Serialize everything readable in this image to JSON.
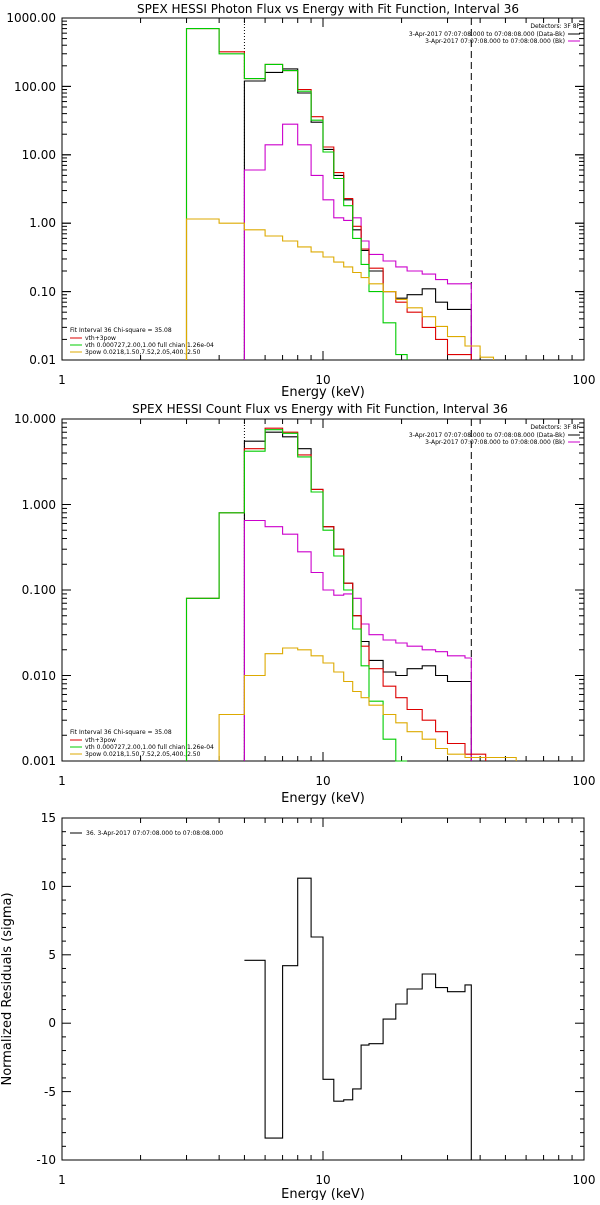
{
  "chart_data": [
    {
      "type": "line",
      "title": "SPEX HESSI Photon Flux vs Energy with Fit Function, Interval 36",
      "xlabel": "Energy (keV)",
      "ylabel": "",
      "xscale": "log",
      "yscale": "log",
      "xlim": [
        1,
        100
      ],
      "ylim": [
        0.01,
        1000
      ],
      "x_ticks": [
        "1",
        "10",
        "100"
      ],
      "y_ticks": [
        "0.01",
        "0.10",
        "1.00",
        "10.00",
        "100.00",
        "1000.00"
      ],
      "detectors_label": "Detectors: 3F 8F",
      "legend_top": [
        {
          "text": "3-Apr-2017 07:07:08.000 to 07:08:08.000 (Data-Bk)",
          "color": "#000000"
        },
        {
          "text": "3-Apr-2017 07:07:08.000 to 07:08:08.000 (Bk)",
          "color": "#cc00cc"
        }
      ],
      "fit_info": "Fit Interval 36   Chi-square = 35.08",
      "legend_bottom": [
        {
          "text": "vth+3pow",
          "color": "#dd0000"
        },
        {
          "text": "vth 0.000727,2.00,1.00   full chian 1.26e-04",
          "color": "#00cc00"
        },
        {
          "text": "3pow 0.0218,1.50,7.52,2.05,400.,2.50",
          "color": "#ddaa00"
        }
      ],
      "edges": [
        3,
        4,
        5,
        6,
        7,
        8,
        9,
        10,
        11,
        12,
        13,
        14,
        15,
        17,
        19,
        21,
        24,
        27,
        30,
        35,
        40,
        45
      ],
      "vlines": [
        {
          "x": 5,
          "style": "dotted"
        },
        {
          "x": 37,
          "style": "dashed"
        }
      ],
      "series": [
        {
          "name": "Data-Bk",
          "color": "#000000",
          "start": 5,
          "end": 37,
          "steps": [
            [
              5,
              120
            ],
            [
              6,
              160
            ],
            [
              7,
              180
            ],
            [
              8,
              80
            ],
            [
              9,
              30
            ],
            [
              10,
              12
            ],
            [
              11,
              5
            ],
            [
              12,
              2.2
            ],
            [
              13,
              0.8
            ],
            [
              14,
              0.4
            ],
            [
              15,
              0.2
            ],
            [
              17,
              0.1
            ],
            [
              19,
              0.08
            ],
            [
              21,
              0.09
            ],
            [
              24,
              0.11
            ],
            [
              27,
              0.07
            ],
            [
              30,
              0.055
            ],
            [
              35,
              0.055
            ]
          ]
        },
        {
          "name": "Bk",
          "color": "#cc00cc",
          "start": 5,
          "end": 37,
          "steps": [
            [
              5,
              6
            ],
            [
              6,
              14
            ],
            [
              7,
              28
            ],
            [
              8,
              14
            ],
            [
              9,
              5
            ],
            [
              10,
              2.2
            ],
            [
              11,
              1.2
            ],
            [
              12,
              1.1
            ],
            [
              13,
              1.2
            ],
            [
              14,
              0.55
            ],
            [
              15,
              0.35
            ],
            [
              17,
              0.28
            ],
            [
              19,
              0.23
            ],
            [
              21,
              0.2
            ],
            [
              24,
              0.18
            ],
            [
              27,
              0.15
            ],
            [
              30,
              0.13
            ],
            [
              35,
              0.13
            ]
          ]
        },
        {
          "name": "vth+3pow",
          "color": "#dd0000",
          "start": 3,
          "end": 37,
          "steps": [
            [
              3,
              700
            ],
            [
              4,
              320
            ],
            [
              5,
              130
            ],
            [
              6,
              210
            ],
            [
              7,
              170
            ],
            [
              8,
              90
            ],
            [
              9,
              36
            ],
            [
              10,
              13
            ],
            [
              11,
              5.5
            ],
            [
              12,
              2.3
            ],
            [
              13,
              0.9
            ],
            [
              14,
              0.42
            ],
            [
              15,
              0.22
            ],
            [
              17,
              0.1
            ],
            [
              19,
              0.07
            ],
            [
              21,
              0.05
            ],
            [
              24,
              0.03
            ],
            [
              27,
              0.02
            ],
            [
              30,
              0.012
            ],
            [
              35,
              0.012
            ]
          ]
        },
        {
          "name": "vth",
          "color": "#00cc00",
          "start": 3,
          "end": 21,
          "steps": [
            [
              3,
              700
            ],
            [
              4,
              300
            ],
            [
              5,
              130
            ],
            [
              6,
              210
            ],
            [
              7,
              170
            ],
            [
              8,
              85
            ],
            [
              9,
              32
            ],
            [
              10,
              11
            ],
            [
              11,
              4.5
            ],
            [
              12,
              1.8
            ],
            [
              13,
              0.6
            ],
            [
              14,
              0.25
            ],
            [
              15,
              0.1
            ],
            [
              17,
              0.035
            ],
            [
              19,
              0.012
            ]
          ]
        },
        {
          "name": "3pow",
          "color": "#ddaa00",
          "start": 3,
          "end": 45,
          "steps": [
            [
              3,
              1.15
            ],
            [
              4,
              1.0
            ],
            [
              5,
              0.8
            ],
            [
              6,
              0.65
            ],
            [
              7,
              0.55
            ],
            [
              8,
              0.45
            ],
            [
              9,
              0.38
            ],
            [
              10,
              0.32
            ],
            [
              11,
              0.27
            ],
            [
              12,
              0.23
            ],
            [
              13,
              0.19
            ],
            [
              14,
              0.16
            ],
            [
              15,
              0.13
            ],
            [
              17,
              0.1
            ],
            [
              19,
              0.077
            ],
            [
              21,
              0.058
            ],
            [
              24,
              0.043
            ],
            [
              27,
              0.031
            ],
            [
              30,
              0.022
            ],
            [
              35,
              0.016
            ],
            [
              40,
              0.011
            ]
          ]
        }
      ]
    },
    {
      "type": "line",
      "title": "SPEX HESSI Count Flux vs Energy with Fit Function, Interval 36",
      "xlabel": "Energy (keV)",
      "ylabel": "",
      "xscale": "log",
      "yscale": "log",
      "xlim": [
        1,
        100
      ],
      "ylim": [
        0.001,
        10
      ],
      "x_ticks": [
        "1",
        "10",
        "100"
      ],
      "y_ticks": [
        "0.001",
        "0.010",
        "0.100",
        "1.000",
        "10.000"
      ],
      "detectors_label": "Detectors: 3F 8F",
      "legend_top": [
        {
          "text": "3-Apr-2017 07:07:08.000 to 07:08:08.000 (Data-Bk)",
          "color": "#000000"
        },
        {
          "text": "3-Apr-2017 07:07:08.000 to 07:08:08.000 (Bk)",
          "color": "#cc00cc"
        }
      ],
      "fit_info": "Fit Interval 36   Chi-square = 35.08",
      "legend_bottom": [
        {
          "text": "vth+3pow",
          "color": "#dd0000"
        },
        {
          "text": "vth 0.000727,2.00,1.00   full chian 1.26e-04",
          "color": "#00cc00"
        },
        {
          "text": "3pow 0.0218,1.50,7.52,2.05,400.,2.50",
          "color": "#ddaa00"
        }
      ],
      "edges": [
        3,
        4,
        5,
        6,
        7,
        8,
        9,
        10,
        11,
        12,
        13,
        14,
        15,
        17,
        19,
        21,
        24,
        27,
        30,
        35,
        40,
        45,
        50,
        55
      ],
      "vlines": [
        {
          "x": 5,
          "style": "dotted"
        },
        {
          "x": 37,
          "style": "dashed"
        }
      ],
      "series": [
        {
          "name": "Data-Bk",
          "color": "#000000",
          "start": 5,
          "end": 37,
          "steps": [
            [
              5,
              5.5
            ],
            [
              6,
              7
            ],
            [
              7,
              6.2
            ],
            [
              8,
              4.5
            ],
            [
              9,
              1.5
            ],
            [
              10,
              0.55
            ],
            [
              11,
              0.3
            ],
            [
              12,
              0.12
            ],
            [
              13,
              0.05
            ],
            [
              14,
              0.025
            ],
            [
              15,
              0.015
            ],
            [
              17,
              0.011
            ],
            [
              19,
              0.01
            ],
            [
              21,
              0.012
            ],
            [
              24,
              0.013
            ],
            [
              27,
              0.01
            ],
            [
              30,
              0.0085
            ],
            [
              35,
              0.0085
            ]
          ]
        },
        {
          "name": "Bk",
          "color": "#cc00cc",
          "start": 5,
          "end": 37,
          "steps": [
            [
              5,
              0.65
            ],
            [
              6,
              0.55
            ],
            [
              7,
              0.45
            ],
            [
              8,
              0.28
            ],
            [
              9,
              0.16
            ],
            [
              10,
              0.1
            ],
            [
              11,
              0.087
            ],
            [
              12,
              0.09
            ],
            [
              13,
              0.08
            ],
            [
              14,
              0.04
            ],
            [
              15,
              0.03
            ],
            [
              17,
              0.026
            ],
            [
              19,
              0.024
            ],
            [
              21,
              0.022
            ],
            [
              24,
              0.02
            ],
            [
              27,
              0.019
            ],
            [
              30,
              0.017
            ],
            [
              35,
              0.016
            ]
          ]
        },
        {
          "name": "vth+3pow",
          "color": "#dd0000",
          "start": 3,
          "end": 42,
          "steps": [
            [
              3,
              0.08
            ],
            [
              4,
              0.8
            ],
            [
              5,
              4.5
            ],
            [
              6,
              7.8
            ],
            [
              7,
              7.0
            ],
            [
              8,
              3.8
            ],
            [
              9,
              1.5
            ],
            [
              10,
              0.55
            ],
            [
              11,
              0.3
            ],
            [
              12,
              0.12
            ],
            [
              13,
              0.05
            ],
            [
              14,
              0.022
            ],
            [
              15,
              0.012
            ],
            [
              17,
              0.0075
            ],
            [
              19,
              0.0055
            ],
            [
              21,
              0.004
            ],
            [
              24,
              0.003
            ],
            [
              27,
              0.0022
            ],
            [
              30,
              0.0016
            ],
            [
              35,
              0.0012
            ]
          ]
        },
        {
          "name": "vth",
          "color": "#00cc00",
          "start": 3,
          "end": 21,
          "steps": [
            [
              3,
              0.08
            ],
            [
              4,
              0.8
            ],
            [
              5,
              4.2
            ],
            [
              6,
              7.5
            ],
            [
              7,
              6.8
            ],
            [
              8,
              3.6
            ],
            [
              9,
              1.4
            ],
            [
              10,
              0.5
            ],
            [
              11,
              0.25
            ],
            [
              12,
              0.1
            ],
            [
              13,
              0.035
            ],
            [
              14,
              0.013
            ],
            [
              15,
              0.005
            ],
            [
              17,
              0.0018
            ],
            [
              19,
              0.001
            ]
          ]
        },
        {
          "name": "3pow",
          "color": "#ddaa00",
          "start": 4,
          "end": 55,
          "steps": [
            [
              4,
              0.0035
            ],
            [
              5,
              0.01
            ],
            [
              6,
              0.018
            ],
            [
              7,
              0.021
            ],
            [
              8,
              0.02
            ],
            [
              9,
              0.017
            ],
            [
              10,
              0.014
            ],
            [
              11,
              0.011
            ],
            [
              12,
              0.0085
            ],
            [
              13,
              0.0065
            ],
            [
              14,
              0.0055
            ],
            [
              15,
              0.0045
            ],
            [
              17,
              0.0035
            ],
            [
              19,
              0.0028
            ],
            [
              21,
              0.0022
            ],
            [
              24,
              0.0018
            ],
            [
              27,
              0.0014
            ],
            [
              30,
              0.0012
            ],
            [
              35,
              0.0011
            ],
            [
              40,
              0.0011
            ],
            [
              45,
              0.0011
            ],
            [
              50,
              0.0011
            ]
          ]
        }
      ]
    },
    {
      "type": "line",
      "title": "",
      "xlabel": "Energy (keV)",
      "ylabel": "Normalized Residuals (sigma)",
      "xscale": "log",
      "yscale": "linear",
      "xlim": [
        1,
        100
      ],
      "ylim": [
        -10,
        15
      ],
      "x_ticks": [
        "1",
        "10",
        "100"
      ],
      "y_ticks": [
        "-10",
        "-5",
        "0",
        "5",
        "10",
        "15"
      ],
      "legend_top": [
        {
          "text": "36.  3-Apr-2017 07:07:08.000 to 07:08:08.000",
          "color": "#000000"
        }
      ],
      "series": [
        {
          "name": "",
          "color": "#000000",
          "start": 5,
          "end": 37,
          "steps": [
            [
              5,
              4.6
            ],
            [
              6,
              -8.4
            ],
            [
              7,
              4.2
            ],
            [
              8,
              10.6
            ],
            [
              9,
              6.3
            ],
            [
              10,
              -4.1
            ],
            [
              11,
              -5.7
            ],
            [
              12,
              -5.6
            ],
            [
              13,
              -4.8
            ],
            [
              14,
              -1.6
            ],
            [
              15,
              -1.5
            ],
            [
              17,
              0.3
            ],
            [
              19,
              1.4
            ],
            [
              21,
              2.5
            ],
            [
              24,
              3.6
            ],
            [
              27,
              2.6
            ],
            [
              30,
              2.3
            ],
            [
              35,
              2.8
            ]
          ]
        }
      ]
    }
  ]
}
